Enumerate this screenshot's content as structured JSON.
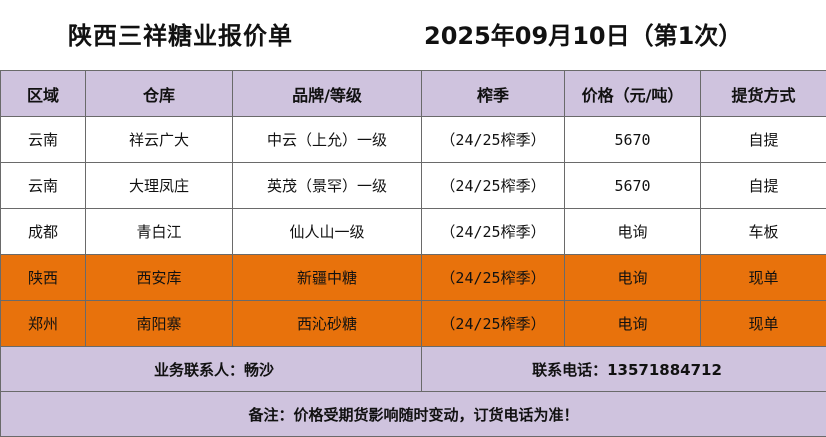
{
  "title": {
    "company": "陕西三祥糖业报价单",
    "date": "2025年09月10日（第1次）"
  },
  "headers": [
    "区域",
    "仓库",
    "品牌/等级",
    "榨季",
    "价格（元/吨）",
    "提货方式"
  ],
  "rows": [
    {
      "region": "云南",
      "warehouse": "祥云广大",
      "brand": "中云（上允）一级",
      "season": "（24/25榨季）",
      "price": "5670",
      "pickup": "自提",
      "highlight": false
    },
    {
      "region": "云南",
      "warehouse": "大理凤庄",
      "brand": "英茂（景罕）一级",
      "season": "（24/25榨季）",
      "price": "5670",
      "pickup": "自提",
      "highlight": false
    },
    {
      "region": "成都",
      "warehouse": "青白江",
      "brand": "仙人山一级",
      "season": "（24/25榨季）",
      "price": "电询",
      "pickup": "车板",
      "highlight": false
    },
    {
      "region": "陕西",
      "warehouse": "西安库",
      "brand": "新疆中糖",
      "season": "（24/25榨季）",
      "price": "电询",
      "pickup": "现单",
      "highlight": true
    },
    {
      "region": "郑州",
      "warehouse": "南阳寨",
      "brand": "西沁砂糖",
      "season": "（24/25榨季）",
      "price": "电询",
      "pickup": "现单",
      "highlight": true
    }
  ],
  "contact": {
    "person": "业务联系人：畅沙",
    "phone": "联系电话：13571884712"
  },
  "note": "备注：价格受期货影响随时变动，订货电话为准！",
  "colors": {
    "header_bg": "#cfc3de",
    "highlight_bg": "#e8720c"
  }
}
